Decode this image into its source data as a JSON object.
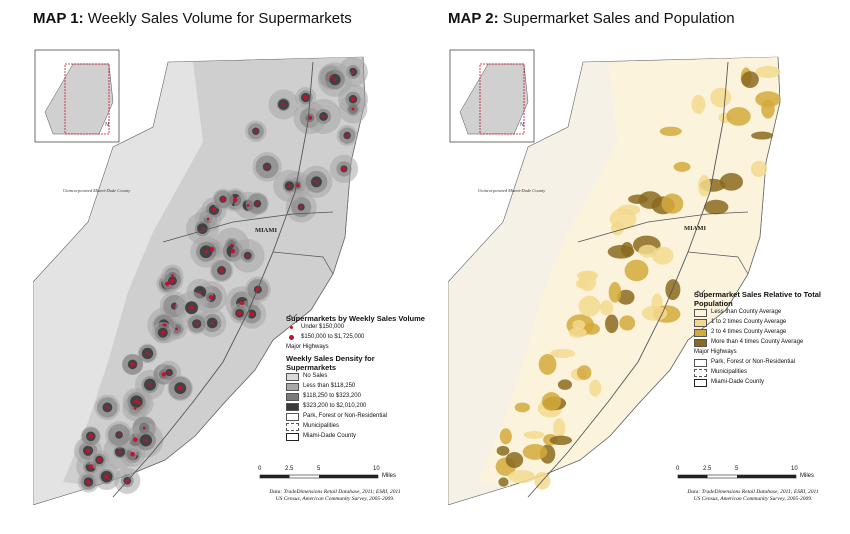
{
  "map1": {
    "title_prefix": "MAP 1:",
    "title_text": "Weekly Sales Volume for Supermarkets",
    "legend": {
      "title_points": "Supermarkets by Weekly Sales Volume",
      "points": [
        {
          "label": "Under $150,000",
          "color": "#c8102e"
        },
        {
          "label": "$150,000 to $1,725,000",
          "color": "#c8102e"
        }
      ],
      "highways_label": "Major Highways",
      "title_density": "Weekly Sales Density for Supermarkets",
      "density": [
        {
          "label": "No Sales",
          "color": "#d9d9d9"
        },
        {
          "label": "Less than $118,250",
          "color": "#a8a8a8"
        },
        {
          "label": "$118,250 to $323,200",
          "color": "#7a7a7a"
        },
        {
          "label": "$323,200 to $2,010,200",
          "color": "#3a3a3a"
        }
      ],
      "extras": [
        "Park, Forest or Non-Residential",
        "Municipalities",
        "Miami-Dade County"
      ]
    },
    "scale": {
      "ticks": [
        "0",
        "2.5",
        "5",
        "10"
      ],
      "unit": "Miles"
    },
    "source": [
      "Data: TradeDimensions Retail Database, 2011; ESRI, 2011",
      "US Census, American Community Survey, 2005-2009."
    ],
    "labels": {
      "miami": "MIAMI",
      "unincorporated": "Unincorporated Miami-Dade County"
    }
  },
  "map2": {
    "title_prefix": "MAP 2:",
    "title_text": "Supermarket Sales and Population",
    "legend": {
      "title": "Supermarket Sales Relative to Total Population",
      "classes": [
        {
          "label": "Less than County Average",
          "color": "#fbf3dc"
        },
        {
          "label": "1 to 2 times County Average",
          "color": "#f3d98e"
        },
        {
          "label": "2 to 4 times County Average",
          "color": "#d4a93c"
        },
        {
          "label": "More than 4 times County Average",
          "color": "#8a6a1e"
        }
      ],
      "extras": [
        "Major Highways",
        "Park, Forest or Non-Residential",
        "Municipalities",
        "Miami-Dade County"
      ]
    },
    "scale": {
      "ticks": [
        "0",
        "2.5",
        "5",
        "10"
      ],
      "unit": "Miles"
    },
    "source": [
      "Data: TradeDimensions Retail Database, 2011; ESRI, 2011",
      "US Census, American Community Survey, 2005-2009."
    ],
    "labels": {
      "miami": "MIAMI",
      "unincorporated": "Unincorporated Miami-Dade County"
    }
  }
}
